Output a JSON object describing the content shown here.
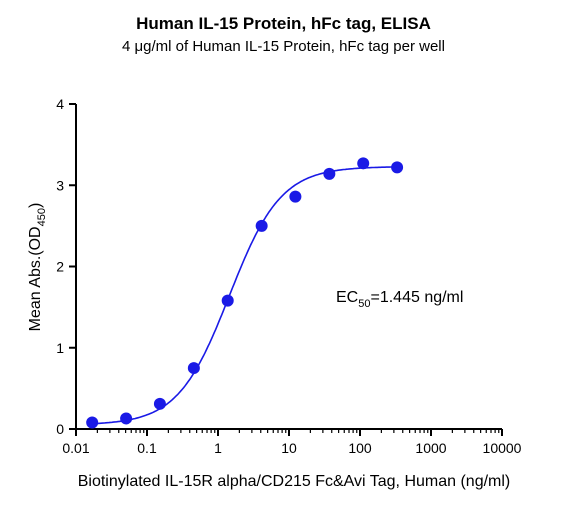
{
  "chart_data": {
    "type": "scatter",
    "title": "Human IL-15 Protein, hFc tag, ELISA",
    "subtitle": "4 μg/ml of Human IL-15 Protein, hFc tag per well",
    "xlabel": "Biotinylated IL-15R alpha/CD215 Fc&Avi Tag, Human (ng/ml)",
    "ylabel": {
      "main": "Mean Abs.(OD",
      "sub": "450",
      "close": ")"
    },
    "xscale": "log",
    "xlim": [
      0.01,
      10000
    ],
    "ylim": [
      0,
      4
    ],
    "xticks": [
      "0.01",
      "0.1",
      "1",
      "10",
      "100",
      "1000",
      "10000"
    ],
    "yticks": [
      "0",
      "1",
      "2",
      "3",
      "4"
    ],
    "grid": false,
    "series": [
      {
        "color": "#1a1ae6",
        "points": [
          {
            "x": 0.0169,
            "y": 0.08
          },
          {
            "x": 0.0508,
            "y": 0.13
          },
          {
            "x": 0.152,
            "y": 0.31
          },
          {
            "x": 0.457,
            "y": 0.75
          },
          {
            "x": 1.37,
            "y": 1.58
          },
          {
            "x": 4.12,
            "y": 2.5
          },
          {
            "x": 12.3,
            "y": 2.86
          },
          {
            "x": 37.0,
            "y": 3.14
          },
          {
            "x": 111,
            "y": 3.27
          },
          {
            "x": 333,
            "y": 3.22
          }
        ],
        "fit": {
          "bottom": 0.05,
          "top": 3.23,
          "ec50": 1.445,
          "hill": 1.2
        }
      }
    ],
    "annotation": {
      "prefix": "EC",
      "sub": "50",
      "suffix": "=1.445 ng/ml"
    }
  }
}
